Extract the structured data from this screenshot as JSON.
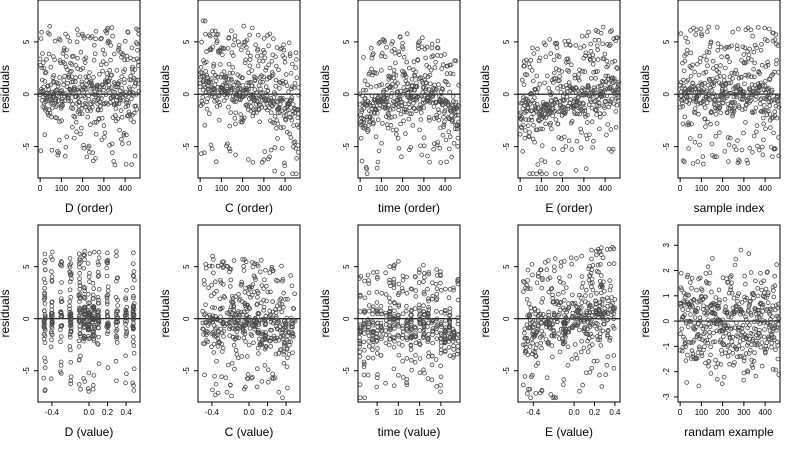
{
  "figure": {
    "point_color": "#4a4a4a",
    "zero_line_color": "#000000"
  },
  "chart_data": [
    {
      "type": "scatter",
      "xlabel": "D (order)",
      "ylabel": "residuals",
      "xlim": [
        -10,
        470
      ],
      "ylim": [
        -8,
        9
      ],
      "xticks": [
        0,
        100,
        200,
        300,
        400
      ],
      "yticks": [
        -5,
        0,
        5
      ],
      "pattern": "order_flat",
      "n": 470
    },
    {
      "type": "scatter",
      "xlabel": "C (order)",
      "ylabel": "residuals",
      "xlim": [
        -10,
        470
      ],
      "ylim": [
        -8,
        9
      ],
      "xticks": [
        0,
        100,
        200,
        300,
        400
      ],
      "yticks": [
        -5,
        0,
        5
      ],
      "pattern": "order_decline",
      "n": 470
    },
    {
      "type": "scatter",
      "xlabel": "time (order)",
      "ylabel": "residuals",
      "xlim": [
        -10,
        470
      ],
      "ylim": [
        -8,
        9
      ],
      "xticks": [
        0,
        100,
        200,
        300,
        400
      ],
      "yticks": [
        -5,
        0,
        5
      ],
      "pattern": "order_arch",
      "n": 470
    },
    {
      "type": "scatter",
      "xlabel": "E (order)",
      "ylabel": "residuals",
      "xlim": [
        -10,
        470
      ],
      "ylim": [
        -8,
        9
      ],
      "xticks": [
        0,
        100,
        200,
        300,
        400
      ],
      "yticks": [
        -5,
        0,
        5
      ],
      "pattern": "order_rise",
      "n": 470
    },
    {
      "type": "scatter",
      "xlabel": "sample index",
      "ylabel": "residuals",
      "xlim": [
        -10,
        470
      ],
      "ylim": [
        -8,
        9
      ],
      "xticks": [
        0,
        100,
        200,
        300,
        400
      ],
      "yticks": [
        -5,
        0,
        5
      ],
      "pattern": "order_flat",
      "n": 470
    },
    {
      "type": "scatter",
      "xlabel": "D (value)",
      "ylabel": "residuals",
      "xlim": [
        -0.55,
        0.55
      ],
      "ylim": [
        -8,
        9
      ],
      "xticks": [
        -0.4,
        0.0,
        0.2,
        0.4
      ],
      "xticklabels": [
        "-0.4",
        "0.0",
        "0.2",
        "0.4"
      ],
      "yticks": [
        -5,
        0,
        5
      ],
      "pattern": "value_columns",
      "n": 470
    },
    {
      "type": "scatter",
      "xlabel": "C (value)",
      "ylabel": "residuals",
      "xlim": [
        -0.55,
        0.55
      ],
      "ylim": [
        -8,
        9
      ],
      "xticks": [
        -0.4,
        0.0,
        0.2,
        0.4
      ],
      "xticklabels": [
        "-0.4",
        "0.0",
        "0.2",
        "0.4"
      ],
      "yticks": [
        -5,
        0,
        5
      ],
      "pattern": "value_decline",
      "n": 470
    },
    {
      "type": "scatter",
      "xlabel": "time (value)",
      "ylabel": "residuals",
      "xlim": [
        0.5,
        24.5
      ],
      "ylim": [
        -8,
        9
      ],
      "xticks": [
        5,
        10,
        15,
        20
      ],
      "yticks": [
        -5,
        0,
        5
      ],
      "pattern": "value_time",
      "n": 470
    },
    {
      "type": "scatter",
      "xlabel": "E (value)",
      "ylabel": "residuals",
      "xlim": [
        -0.55,
        0.45
      ],
      "ylim": [
        -8,
        9
      ],
      "xticks": [
        -0.4,
        0.0,
        0.2,
        0.4
      ],
      "xticklabels": [
        "-0.4",
        "0.0",
        "0.2",
        "0.4"
      ],
      "yticks": [
        -5,
        0,
        5
      ],
      "pattern": "value_rise",
      "n": 470
    },
    {
      "type": "scatter",
      "xlabel": "randam example",
      "ylabel": "residuals",
      "xlim": [
        -10,
        470
      ],
      "ylim": [
        -3.2,
        3.8
      ],
      "xticks": [
        0,
        100,
        200,
        300,
        400
      ],
      "yticks": [
        -3,
        -2,
        -1,
        0,
        1,
        2,
        3
      ],
      "pattern": "random_normal",
      "n": 470
    }
  ]
}
